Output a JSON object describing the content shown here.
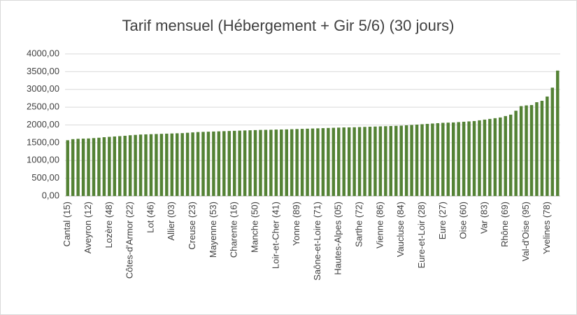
{
  "chart_data": {
    "type": "bar",
    "title": "Tarif mensuel  (Hébergement + Gir 5/6) (30 jours)",
    "categories": [
      "Cantal (15)",
      null,
      null,
      null,
      "Aveyron (12)",
      null,
      null,
      null,
      "Lozère (48)",
      null,
      null,
      null,
      "Côtes-d'Armor (22)",
      null,
      null,
      null,
      "Lot (46)",
      null,
      null,
      null,
      "Allier (03)",
      null,
      null,
      null,
      "Creuse (23)",
      null,
      null,
      null,
      "Mayenne (53)",
      null,
      null,
      null,
      "Charente (16)",
      null,
      null,
      null,
      "Manche (50)",
      null,
      null,
      null,
      "Loir-et-Cher (41)",
      null,
      null,
      null,
      "Yonne (89)",
      null,
      null,
      null,
      "Saône-et-Loire (71)",
      null,
      null,
      null,
      "Hautes-Alpes (05)",
      null,
      null,
      null,
      "Sarthe (72)",
      null,
      null,
      null,
      "Vienne (86)",
      null,
      null,
      null,
      "Vaucluse (84)",
      null,
      null,
      null,
      "Eure-et-Loir (28)",
      null,
      null,
      null,
      "Eure (27)",
      null,
      null,
      null,
      "Oise (60)",
      null,
      null,
      null,
      "Var (83)",
      null,
      null,
      null,
      "Rhône (69)",
      null,
      null,
      null,
      "Val-d'Oise (95)",
      null,
      null,
      null,
      "Yvelines (78)",
      null,
      null
    ],
    "values": [
      1570,
      1600,
      1610,
      1615,
      1620,
      1630,
      1640,
      1655,
      1665,
      1675,
      1685,
      1695,
      1710,
      1720,
      1730,
      1735,
      1740,
      1745,
      1750,
      1755,
      1760,
      1765,
      1770,
      1780,
      1790,
      1800,
      1805,
      1810,
      1815,
      1820,
      1825,
      1830,
      1835,
      1840,
      1845,
      1850,
      1855,
      1860,
      1862,
      1865,
      1870,
      1872,
      1875,
      1880,
      1885,
      1890,
      1895,
      1900,
      1905,
      1910,
      1915,
      1920,
      1925,
      1930,
      1932,
      1935,
      1940,
      1945,
      1950,
      1955,
      1960,
      1965,
      1970,
      1975,
      1980,
      1990,
      2000,
      2010,
      2020,
      2030,
      2040,
      2050,
      2060,
      2065,
      2070,
      2080,
      2090,
      2100,
      2110,
      2130,
      2150,
      2170,
      2190,
      2210,
      2250,
      2290,
      2400,
      2530,
      2550,
      2560,
      2640,
      2680,
      2800,
      3050,
      3530
    ],
    "color": "#548235",
    "ylim": [
      0,
      4000
    ],
    "yticks": [
      {
        "value": 0,
        "label": "0,00"
      },
      {
        "value": 500,
        "label": "500,00"
      },
      {
        "value": 1000,
        "label": "1000,00"
      },
      {
        "value": 1500,
        "label": "1500,00"
      },
      {
        "value": 2000,
        "label": "2000,00"
      },
      {
        "value": 2500,
        "label": "2500,00"
      },
      {
        "value": 3000,
        "label": "3000,00"
      },
      {
        "value": 3500,
        "label": "3500,00"
      },
      {
        "value": 4000,
        "label": "4000,00"
      }
    ],
    "grid": true
  }
}
